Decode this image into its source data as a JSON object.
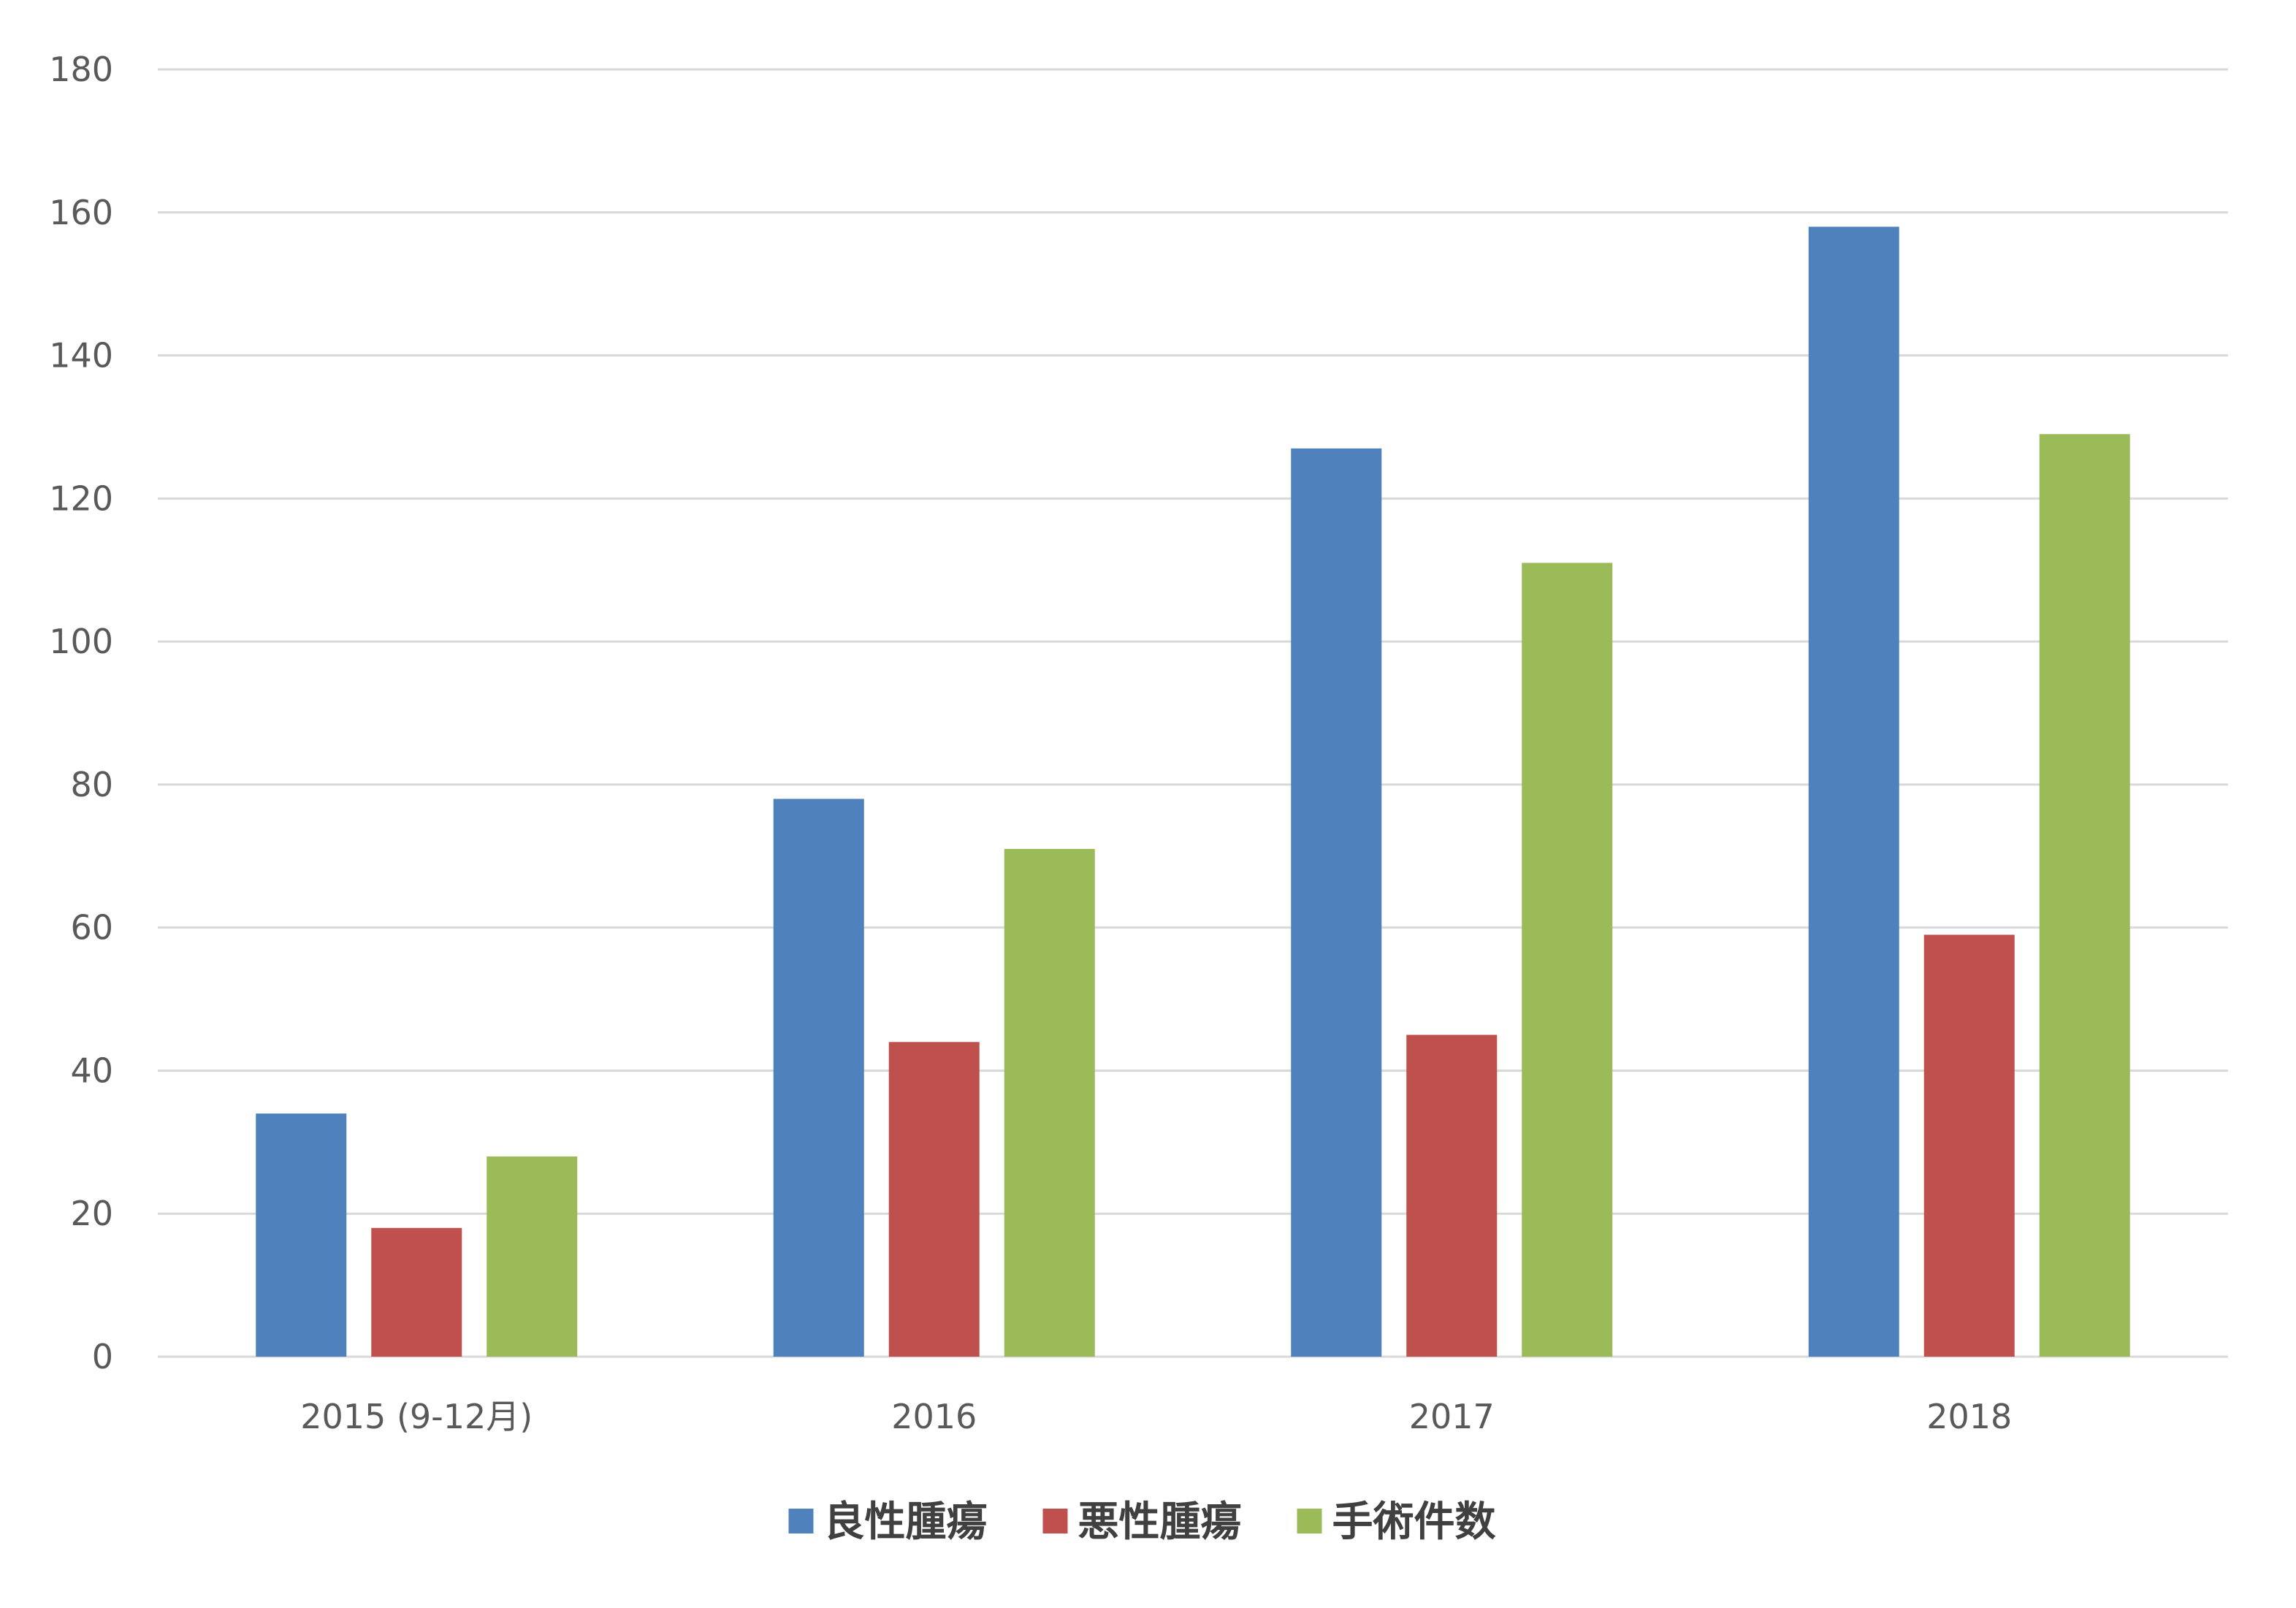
{
  "chart_data": {
    "type": "bar",
    "categories": [
      "2015 (9-12月)",
      "2016",
      "2017",
      "2018"
    ],
    "series": [
      {
        "name": "良性腫瘍",
        "values": [
          34,
          78,
          127,
          158
        ],
        "color": "#4F81BD"
      },
      {
        "name": "悪性腫瘍",
        "values": [
          18,
          44,
          45,
          59
        ],
        "color": "#C0504D"
      },
      {
        "name": "手術件数",
        "values": [
          28,
          71,
          111,
          129
        ],
        "color": "#9BBB59"
      }
    ],
    "title": "",
    "xlabel": "",
    "ylabel": "",
    "ylim": [
      0,
      180
    ],
    "yticks": [
      0,
      20,
      40,
      60,
      80,
      100,
      120,
      140,
      160,
      180
    ],
    "grid": true,
    "legend_position": "bottom",
    "gridline_color": "#D9D9D9"
  }
}
